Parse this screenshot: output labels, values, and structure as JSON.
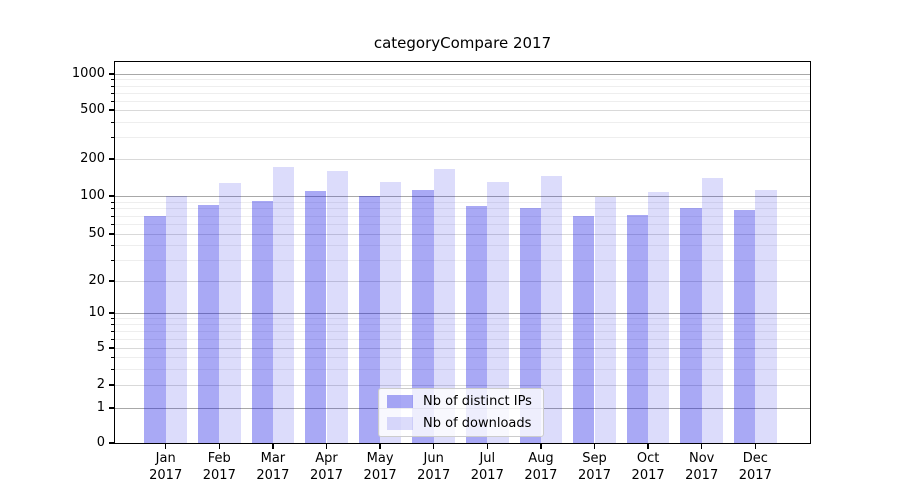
{
  "title": "categoryCompare 2017",
  "chart_data": {
    "type": "bar",
    "title": "categoryCompare 2017",
    "categories": [
      "Jan",
      "Feb",
      "Mar",
      "Apr",
      "May",
      "Jun",
      "Jul",
      "Aug",
      "Sep",
      "Oct",
      "Nov",
      "Dec"
    ],
    "category_year": "2017",
    "series": [
      {
        "name": "Nb of distinct IPs",
        "fill": "rgba(10,10,225,0.35)",
        "approx_hex_on_white": "#a8a8f2",
        "values": [
          70,
          85,
          91,
          109,
          100,
          111,
          83,
          81,
          69,
          71,
          81,
          78
        ]
      },
      {
        "name": "Nb of downloads",
        "fill": "rgba(10,10,225,0.14)",
        "approx_hex_on_white": "#dcdcf8",
        "values": [
          100,
          128,
          171,
          160,
          129,
          165,
          130,
          145,
          98,
          108,
          141,
          112
        ]
      }
    ],
    "y_ticks": [
      0,
      1,
      2,
      5,
      10,
      20,
      50,
      100,
      200,
      500,
      1000
    ],
    "y_major_emphasis": [
      1,
      10,
      100,
      1000
    ],
    "y_minor_gridlines": [
      3,
      4,
      6,
      7,
      8,
      9,
      30,
      40,
      60,
      70,
      80,
      90,
      300,
      400,
      600,
      700,
      800,
      900
    ],
    "ylim": [
      0,
      1800
    ],
    "scale": "log-like with 1-2-5 ticks and linear 0 segment",
    "grid": "horizontal solid gray lines, darker at powers of 10",
    "legend_position": "inside bottom-center",
    "xlabel": "",
    "ylabel": ""
  },
  "grid_colors": {
    "major": "#a8a8a8",
    "labeled": "#d9d9d9",
    "minor": "#eeeeee"
  }
}
